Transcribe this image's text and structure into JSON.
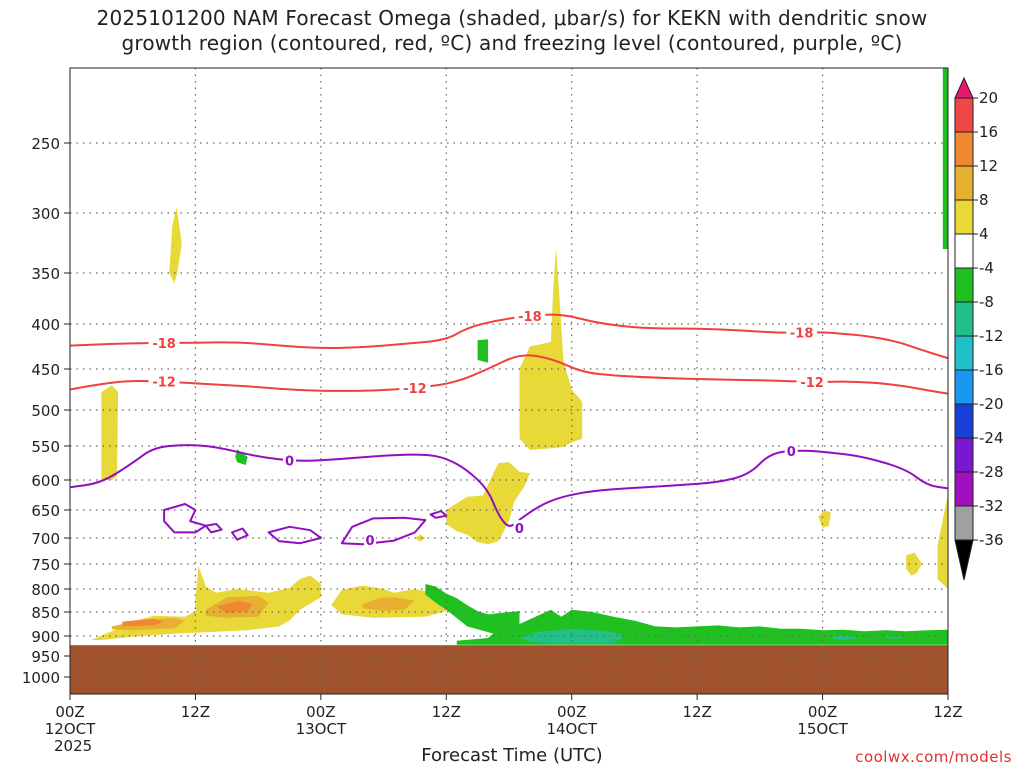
{
  "title": {
    "line1": "2025101200 NAM Forecast Omega (shaded, μbar/s) for KEKN with dendritic snow",
    "line2": "growth region (contoured, red, ºC) and freezing level (contoured, purple, ºC)"
  },
  "xlabel": "Forecast Time (UTC)",
  "credit": "coolwx.com/models",
  "chart_data": {
    "type": "heatmap",
    "y_axis": {
      "unit": "hPa",
      "ticks": [
        250,
        300,
        350,
        400,
        450,
        500,
        550,
        600,
        650,
        700,
        750,
        800,
        850,
        900,
        950,
        1000
      ],
      "range": [
        1050,
        200
      ]
    },
    "x_axis": {
      "unit": "hours from 2025101200",
      "range": [
        0,
        84
      ],
      "ticks": [
        {
          "h": 0,
          "l1": "00Z",
          "l2": "12OCT",
          "l3": "2025"
        },
        {
          "h": 12,
          "l1": "12Z",
          "l2": "",
          "l3": ""
        },
        {
          "h": 24,
          "l1": "00Z",
          "l2": "13OCT",
          "l3": ""
        },
        {
          "h": 36,
          "l1": "12Z",
          "l2": "",
          "l3": ""
        },
        {
          "h": 48,
          "l1": "00Z",
          "l2": "14OCT",
          "l3": ""
        },
        {
          "h": 60,
          "l1": "12Z",
          "l2": "",
          "l3": ""
        },
        {
          "h": 72,
          "l1": "00Z",
          "l2": "15OCT",
          "l3": ""
        },
        {
          "h": 84,
          "l1": "12Z",
          "l2": "",
          "l3": ""
        }
      ]
    },
    "grid": true,
    "colorbar": {
      "labels": [
        "20",
        "16",
        "12",
        "8",
        "4",
        "-4",
        "-8",
        "-12",
        "-16",
        "-20",
        "-24",
        "-28",
        "-32",
        "-36"
      ],
      "colors": [
        "#e8186e",
        "#f04848",
        "#f08830",
        "#e8b030",
        "#e8d838",
        "#ffffff",
        "#20c020",
        "#20c088",
        "#20c0c8",
        "#1898f0",
        "#1840d8",
        "#7818d0",
        "#a010c0",
        "#a0a0a0",
        "#000000"
      ]
    },
    "ground": {
      "color": "#a0522d",
      "from_hPa": 923
    },
    "contours": [
      {
        "name": "-18",
        "color": "#f04040",
        "points": [
          [
            0,
            424
          ],
          [
            4,
            422
          ],
          [
            8,
            421
          ],
          [
            12,
            421
          ],
          [
            16,
            420
          ],
          [
            20,
            424
          ],
          [
            24,
            427
          ],
          [
            28,
            426
          ],
          [
            32,
            422
          ],
          [
            36,
            418
          ],
          [
            38,
            404
          ],
          [
            41,
            396
          ],
          [
            44,
            392
          ],
          [
            47,
            390
          ],
          [
            50,
            398
          ],
          [
            53,
            403
          ],
          [
            56,
            405
          ],
          [
            60,
            405
          ],
          [
            64,
            407
          ],
          [
            68,
            410
          ],
          [
            72,
            409
          ],
          [
            74,
            411
          ],
          [
            76,
            413
          ],
          [
            79,
            419
          ],
          [
            81,
            427
          ],
          [
            84,
            438
          ]
        ],
        "labels": [
          [
            9,
            "-18"
          ],
          [
            44,
            "-18"
          ],
          [
            70,
            "-18"
          ]
        ]
      },
      {
        "name": "-12",
        "color": "#f04040",
        "points": [
          [
            0,
            475
          ],
          [
            3,
            468
          ],
          [
            6,
            464
          ],
          [
            10,
            466
          ],
          [
            14,
            469
          ],
          [
            18,
            472
          ],
          [
            22,
            476
          ],
          [
            26,
            477
          ],
          [
            30,
            476
          ],
          [
            34,
            472
          ],
          [
            37,
            466
          ],
          [
            40,
            450
          ],
          [
            43,
            433
          ],
          [
            46,
            438
          ],
          [
            49,
            454
          ],
          [
            52,
            458
          ],
          [
            55,
            460
          ],
          [
            59,
            462
          ],
          [
            63,
            463
          ],
          [
            67,
            464
          ],
          [
            71,
            466
          ],
          [
            75,
            465
          ],
          [
            79,
            469
          ],
          [
            82,
            476
          ],
          [
            84,
            480
          ]
        ],
        "labels": [
          [
            9,
            "-12"
          ],
          [
            33,
            "-12"
          ],
          [
            71,
            "-12"
          ]
        ]
      },
      {
        "name": "0",
        "color": "#9010c0",
        "points": [
          [
            0,
            612
          ],
          [
            3,
            605
          ],
          [
            6,
            575
          ],
          [
            8,
            552
          ],
          [
            11,
            548
          ],
          [
            14,
            551
          ],
          [
            18,
            566
          ],
          [
            22,
            573
          ],
          [
            26,
            569
          ],
          [
            30,
            564
          ],
          [
            34,
            562
          ],
          [
            36,
            568
          ],
          [
            38,
            585
          ],
          [
            40,
            616
          ],
          [
            41,
            660
          ],
          [
            42,
            683
          ],
          [
            43,
            667
          ],
          [
            45,
            642
          ],
          [
            47,
            628
          ],
          [
            50,
            618
          ],
          [
            54,
            613
          ],
          [
            58,
            609
          ],
          [
            62,
            604
          ],
          [
            65,
            592
          ],
          [
            67,
            560
          ],
          [
            70,
            556
          ],
          [
            73,
            560
          ],
          [
            76,
            566
          ],
          [
            80,
            584
          ],
          [
            82,
            609
          ],
          [
            84,
            614
          ]
        ],
        "labels": [
          [
            21,
            "0"
          ],
          [
            69,
            "0"
          ]
        ]
      }
    ]
  }
}
